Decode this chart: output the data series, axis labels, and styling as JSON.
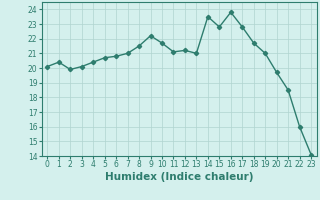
{
  "x": [
    0,
    1,
    2,
    3,
    4,
    5,
    6,
    7,
    8,
    9,
    10,
    11,
    12,
    13,
    14,
    15,
    16,
    17,
    18,
    19,
    20,
    21,
    22,
    23
  ],
  "y": [
    20.1,
    20.4,
    19.9,
    20.1,
    20.4,
    20.7,
    20.8,
    21.0,
    21.5,
    22.2,
    21.7,
    21.1,
    21.2,
    21.0,
    23.5,
    22.8,
    23.8,
    22.8,
    21.7,
    21.0,
    19.7,
    18.5,
    16.0,
    14.1
  ],
  "line_color": "#2e7d6e",
  "marker": "D",
  "marker_size": 2.2,
  "line_width": 1.0,
  "xlabel": "Humidex (Indice chaleur)",
  "xlim": [
    -0.5,
    23.5
  ],
  "ylim": [
    14,
    24.5
  ],
  "yticks": [
    14,
    15,
    16,
    17,
    18,
    19,
    20,
    21,
    22,
    23,
    24
  ],
  "xticks": [
    0,
    1,
    2,
    3,
    4,
    5,
    6,
    7,
    8,
    9,
    10,
    11,
    12,
    13,
    14,
    15,
    16,
    17,
    18,
    19,
    20,
    21,
    22,
    23
  ],
  "bg_color": "#d4f0ed",
  "grid_color": "#b0d4d0",
  "tick_fontsize": 5.5,
  "xlabel_fontsize": 7.5
}
